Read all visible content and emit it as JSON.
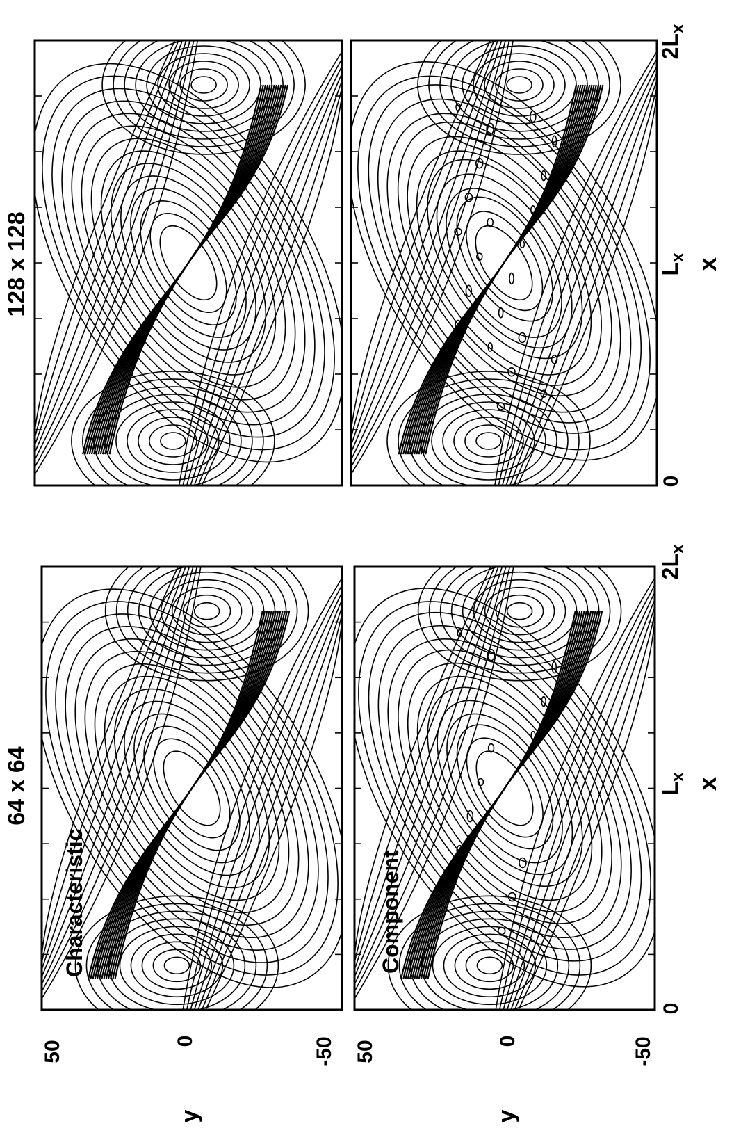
{
  "chart_data": {
    "type": "contour",
    "orientation": "rotated-90-ccw",
    "columns": [
      {
        "title": "64 x 64"
      },
      {
        "title": "128 x 128"
      }
    ],
    "panels": [
      {
        "id": "64-characteristic",
        "grid": "64 x 64",
        "label": "Characteristic"
      },
      {
        "id": "64-component",
        "grid": "64 x 64",
        "label": "Component"
      },
      {
        "id": "128-characteristic",
        "grid": "128 x 128",
        "label": ""
      },
      {
        "id": "128-component",
        "grid": "128 x 128",
        "label": ""
      }
    ],
    "x_axis": {
      "label": "x",
      "ticks": [
        {
          "value": 0,
          "label": "0"
        },
        {
          "value": 1,
          "label": "L",
          "sub": "x"
        },
        {
          "value": 2,
          "label": "2L",
          "sub": "x"
        }
      ]
    },
    "y_axis": {
      "label": "y",
      "range": [
        -50,
        50
      ],
      "ticks": [
        "50",
        "0",
        "-50"
      ]
    }
  },
  "colors": {
    "line": "#000000",
    "background": "#ffffff"
  }
}
